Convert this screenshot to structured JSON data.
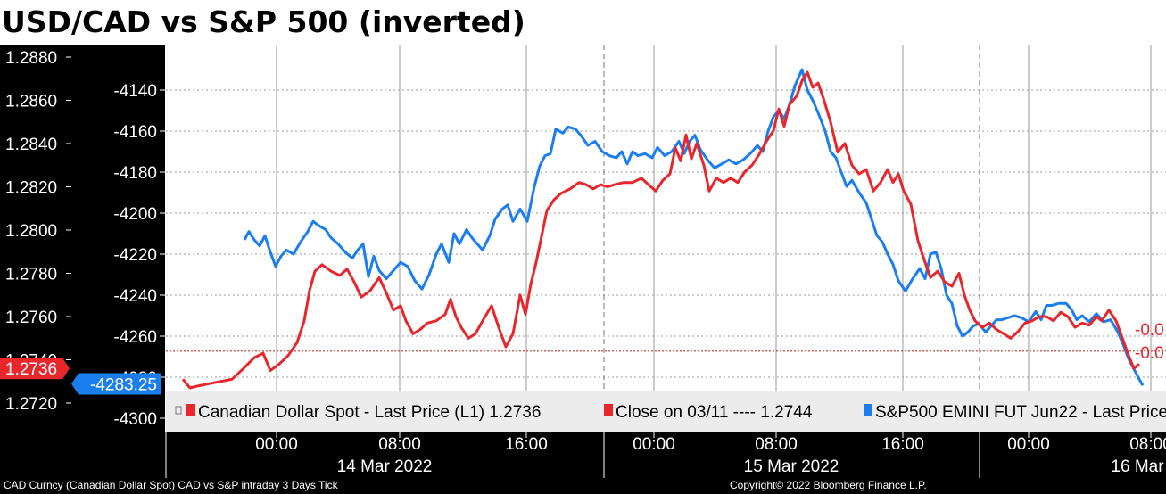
{
  "title": "USD/CAD vs S&P 500 (inverted)",
  "footer": {
    "left": "CAD Curncy (Canadian Dollar Spot) CAD vs S&P intraday 3 Days  Tick",
    "right": "Copyright© 2022 Bloomberg Finance L.P."
  },
  "colors": {
    "usdcad": "#e8262c",
    "spx": "#1a7ef0",
    "close_line": "#c0392b",
    "axis_bg": "#000000",
    "legend_bg": "#ececec"
  },
  "chart_data": {
    "type": "line",
    "left_axis": {
      "ticks": [
        "1.2880",
        "1.2860",
        "1.2840",
        "1.2820",
        "1.2800",
        "1.2780",
        "1.2760",
        "1.2740",
        "1.2720"
      ],
      "min": 1.2712,
      "max": 1.2884
    },
    "right_axis": {
      "ticks": [
        "-4140",
        "-4160",
        "-4180",
        "-4200",
        "-4220",
        "-4240",
        "-4260",
        "-4280",
        "-4300"
      ],
      "min": -4304,
      "max": -4124
    },
    "x_ticks": [
      "00:00",
      "08:00",
      "16:00",
      "00:00",
      "08:00",
      "16:00",
      "00:00",
      "08:00"
    ],
    "date_labels": [
      "14 Mar 2022",
      "15 Mar 2022",
      "16 Mar"
    ],
    "last_price_tags": {
      "usdcad": "1.2736",
      "spx": "-4283.25"
    },
    "right_edge_labels": [
      "-0.0",
      "-0.0"
    ],
    "legend": [
      {
        "label": "Canadian Dollar Spot - Last Price (L1) 1.2736",
        "color": "#e8262c"
      },
      {
        "label": "Close on 03/11 ---- 1.2744",
        "color": "#e8262c"
      },
      {
        "label": "S&P500 EMINI FUT Jun22 - Last Price",
        "color": "#1a7ef0"
      }
    ],
    "close_reference": 1.2744,
    "series": [
      {
        "name": "Canadian Dollar Spot - Last Price (L1)",
        "axis": "left",
        "points": [
          [
            0,
            1.2731
          ],
          [
            8,
            1.2727
          ],
          [
            18,
            1.2728
          ],
          [
            30,
            1.2729
          ],
          [
            42,
            1.273
          ],
          [
            55,
            1.2731
          ],
          [
            68,
            1.2736
          ],
          [
            80,
            1.2741
          ],
          [
            90,
            1.2743
          ],
          [
            98,
            1.2735
          ],
          [
            108,
            1.2738
          ],
          [
            118,
            1.2742
          ],
          [
            128,
            1.2748
          ],
          [
            136,
            1.2758
          ],
          [
            142,
            1.2772
          ],
          [
            148,
            1.2781
          ],
          [
            156,
            1.2784
          ],
          [
            166,
            1.2781
          ],
          [
            176,
            1.2779
          ],
          [
            184,
            1.2782
          ],
          [
            192,
            1.2776
          ],
          [
            200,
            1.2769
          ],
          [
            210,
            1.2772
          ],
          [
            220,
            1.2778
          ],
          [
            228,
            1.2771
          ],
          [
            236,
            1.2763
          ],
          [
            244,
            1.2765
          ],
          [
            250,
            1.2758
          ],
          [
            258,
            1.2752
          ],
          [
            266,
            1.2754
          ],
          [
            274,
            1.2757
          ],
          [
            284,
            1.2758
          ],
          [
            294,
            1.2761
          ],
          [
            300,
            1.2768
          ],
          [
            306,
            1.276
          ],
          [
            312,
            1.2755
          ],
          [
            320,
            1.275
          ],
          [
            328,
            1.2752
          ],
          [
            336,
            1.2758
          ],
          [
            346,
            1.2765
          ],
          [
            354,
            1.2755
          ],
          [
            362,
            1.2746
          ],
          [
            370,
            1.2752
          ],
          [
            378,
            1.277
          ],
          [
            384,
            1.2761
          ],
          [
            390,
            1.2775
          ],
          [
            396,
            1.2785
          ],
          [
            402,
            1.2797
          ],
          [
            408,
            1.2809
          ],
          [
            416,
            1.2814
          ],
          [
            424,
            1.2817
          ],
          [
            434,
            1.2819
          ],
          [
            444,
            1.2822
          ],
          [
            452,
            1.2821
          ],
          [
            460,
            1.2819
          ],
          [
            468,
            1.2821
          ],
          [
            476,
            1.282
          ],
          [
            484,
            1.2821
          ],
          [
            494,
            1.2822
          ],
          [
            504,
            1.2822
          ],
          [
            514,
            1.2824
          ],
          [
            522,
            1.2821
          ],
          [
            530,
            1.2818
          ],
          [
            538,
            1.2823
          ],
          [
            546,
            1.2826
          ],
          [
            552,
            1.2838
          ],
          [
            558,
            1.2832
          ],
          [
            564,
            1.2844
          ],
          [
            570,
            1.2833
          ],
          [
            576,
            1.284
          ],
          [
            584,
            1.283
          ],
          [
            590,
            1.2818
          ],
          [
            598,
            1.2824
          ],
          [
            606,
            1.2822
          ],
          [
            614,
            1.2824
          ],
          [
            622,
            1.2822
          ],
          [
            630,
            1.2827
          ],
          [
            638,
            1.283
          ],
          [
            646,
            1.2835
          ],
          [
            654,
            1.2841
          ],
          [
            662,
            1.2846
          ],
          [
            668,
            1.2856
          ],
          [
            674,
            1.2848
          ],
          [
            680,
            1.2858
          ],
          [
            688,
            1.2862
          ],
          [
            694,
            1.2869
          ],
          [
            700,
            1.2873
          ],
          [
            706,
            1.2866
          ],
          [
            712,
            1.2868
          ],
          [
            718,
            1.2861
          ],
          [
            726,
            1.285
          ],
          [
            734,
            1.2836
          ],
          [
            742,
            1.284
          ],
          [
            750,
            1.283
          ],
          [
            758,
            1.2826
          ],
          [
            766,
            1.2828
          ],
          [
            774,
            1.2818
          ],
          [
            782,
            1.2822
          ],
          [
            790,
            1.2828
          ],
          [
            796,
            1.2822
          ],
          [
            802,
            1.2826
          ],
          [
            808,
            1.2818
          ],
          [
            816,
            1.2812
          ],
          [
            824,
            1.2795
          ],
          [
            832,
            1.2785
          ],
          [
            838,
            1.2778
          ],
          [
            846,
            1.2781
          ],
          [
            854,
            1.2776
          ],
          [
            862,
            1.2774
          ],
          [
            870,
            1.278
          ],
          [
            876,
            1.277
          ],
          [
            882,
            1.2763
          ],
          [
            888,
            1.2758
          ],
          [
            896,
            1.2755
          ],
          [
            904,
            1.2757
          ],
          [
            912,
            1.2754
          ],
          [
            920,
            1.2752
          ],
          [
            928,
            1.275
          ],
          [
            936,
            1.2753
          ],
          [
            944,
            1.2757
          ],
          [
            952,
            1.2758
          ],
          [
            960,
            1.276
          ],
          [
            968,
            1.276
          ],
          [
            976,
            1.2758
          ],
          [
            984,
            1.2762
          ],
          [
            992,
            1.276
          ],
          [
            1000,
            1.2755
          ],
          [
            1008,
            1.2757
          ],
          [
            1016,
            1.2756
          ],
          [
            1024,
            1.276
          ],
          [
            1030,
            1.2758
          ],
          [
            1038,
            1.2763
          ],
          [
            1046,
            1.2758
          ],
          [
            1054,
            1.2749
          ],
          [
            1060,
            1.2742
          ],
          [
            1066,
            1.2736
          ],
          [
            1072,
            1.2738
          ]
        ]
      },
      {
        "name": "S&P500 EMINI FUT Jun22 - Last Price",
        "axis": "right",
        "points": [
          [
            69,
            -4213
          ],
          [
            74,
            -4209
          ],
          [
            80,
            -4213
          ],
          [
            86,
            -4216
          ],
          [
            92,
            -4211
          ],
          [
            98,
            -4219
          ],
          [
            104,
            -4226
          ],
          [
            110,
            -4221
          ],
          [
            116,
            -4218
          ],
          [
            124,
            -4220
          ],
          [
            132,
            -4214
          ],
          [
            140,
            -4209
          ],
          [
            146,
            -4204
          ],
          [
            152,
            -4206
          ],
          [
            160,
            -4208
          ],
          [
            166,
            -4212
          ],
          [
            174,
            -4215
          ],
          [
            182,
            -4219
          ],
          [
            190,
            -4222
          ],
          [
            196,
            -4218
          ],
          [
            202,
            -4215
          ],
          [
            208,
            -4231
          ],
          [
            214,
            -4221
          ],
          [
            220,
            -4228
          ],
          [
            228,
            -4232
          ],
          [
            236,
            -4228
          ],
          [
            244,
            -4224
          ],
          [
            252,
            -4226
          ],
          [
            260,
            -4233
          ],
          [
            268,
            -4237
          ],
          [
            276,
            -4230
          ],
          [
            284,
            -4220
          ],
          [
            290,
            -4215
          ],
          [
            298,
            -4224
          ],
          [
            304,
            -4210
          ],
          [
            310,
            -4215
          ],
          [
            318,
            -4208
          ],
          [
            324,
            -4212
          ],
          [
            330,
            -4215
          ],
          [
            336,
            -4218
          ],
          [
            344,
            -4211
          ],
          [
            350,
            -4203
          ],
          [
            358,
            -4198
          ],
          [
            364,
            -4196
          ],
          [
            370,
            -4204
          ],
          [
            378,
            -4198
          ],
          [
            386,
            -4204
          ],
          [
            394,
            -4187
          ],
          [
            400,
            -4177
          ],
          [
            406,
            -4172
          ],
          [
            412,
            -4171
          ],
          [
            418,
            -4159
          ],
          [
            426,
            -4161
          ],
          [
            432,
            -4158
          ],
          [
            440,
            -4159
          ],
          [
            446,
            -4162
          ],
          [
            454,
            -4167
          ],
          [
            462,
            -4165
          ],
          [
            470,
            -4170
          ],
          [
            478,
            -4172
          ],
          [
            486,
            -4173
          ],
          [
            492,
            -4170
          ],
          [
            498,
            -4176
          ],
          [
            504,
            -4170
          ],
          [
            510,
            -4172
          ],
          [
            518,
            -4171
          ],
          [
            526,
            -4173
          ],
          [
            532,
            -4168
          ],
          [
            540,
            -4172
          ],
          [
            548,
            -4170
          ],
          [
            556,
            -4165
          ],
          [
            562,
            -4171
          ],
          [
            568,
            -4165
          ],
          [
            574,
            -4162
          ],
          [
            580,
            -4169
          ],
          [
            588,
            -4174
          ],
          [
            596,
            -4178
          ],
          [
            604,
            -4176
          ],
          [
            612,
            -4174
          ],
          [
            620,
            -4176
          ],
          [
            628,
            -4174
          ],
          [
            636,
            -4171
          ],
          [
            644,
            -4167
          ],
          [
            650,
            -4170
          ],
          [
            656,
            -4160
          ],
          [
            662,
            -4153
          ],
          [
            668,
            -4150
          ],
          [
            674,
            -4154
          ],
          [
            680,
            -4147
          ],
          [
            686,
            -4138
          ],
          [
            694,
            -4130
          ],
          [
            700,
            -4140
          ],
          [
            706,
            -4145
          ],
          [
            712,
            -4151
          ],
          [
            720,
            -4160
          ],
          [
            726,
            -4170
          ],
          [
            732,
            -4173
          ],
          [
            738,
            -4180
          ],
          [
            744,
            -4187
          ],
          [
            750,
            -4184
          ],
          [
            758,
            -4190
          ],
          [
            766,
            -4195
          ],
          [
            772,
            -4203
          ],
          [
            778,
            -4211
          ],
          [
            784,
            -4214
          ],
          [
            790,
            -4220
          ],
          [
            796,
            -4225
          ],
          [
            802,
            -4233
          ],
          [
            810,
            -4238
          ],
          [
            818,
            -4232
          ],
          [
            826,
            -4227
          ],
          [
            832,
            -4232
          ],
          [
            838,
            -4220
          ],
          [
            844,
            -4219
          ],
          [
            850,
            -4227
          ],
          [
            856,
            -4240
          ],
          [
            862,
            -4244
          ],
          [
            868,
            -4255
          ],
          [
            874,
            -4260
          ],
          [
            880,
            -4258
          ],
          [
            886,
            -4255
          ],
          [
            892,
            -4254
          ],
          [
            900,
            -4258
          ],
          [
            906,
            -4255
          ],
          [
            912,
            -4252
          ],
          [
            918,
            -4252
          ],
          [
            932,
            -4250
          ],
          [
            940,
            -4251
          ],
          [
            948,
            -4253
          ],
          [
            956,
            -4248
          ],
          [
            962,
            -4252
          ],
          [
            968,
            -4245
          ],
          [
            974,
            -4245
          ],
          [
            982,
            -4244
          ],
          [
            990,
            -4244
          ],
          [
            996,
            -4247
          ],
          [
            1002,
            -4252
          ],
          [
            1008,
            -4250
          ],
          [
            1016,
            -4253
          ],
          [
            1024,
            -4249
          ],
          [
            1032,
            -4253
          ],
          [
            1040,
            -4252
          ],
          [
            1048,
            -4258
          ],
          [
            1054,
            -4264
          ],
          [
            1060,
            -4271
          ],
          [
            1066,
            -4276
          ],
          [
            1072,
            -4281
          ],
          [
            1076,
            -4284
          ]
        ]
      }
    ]
  }
}
